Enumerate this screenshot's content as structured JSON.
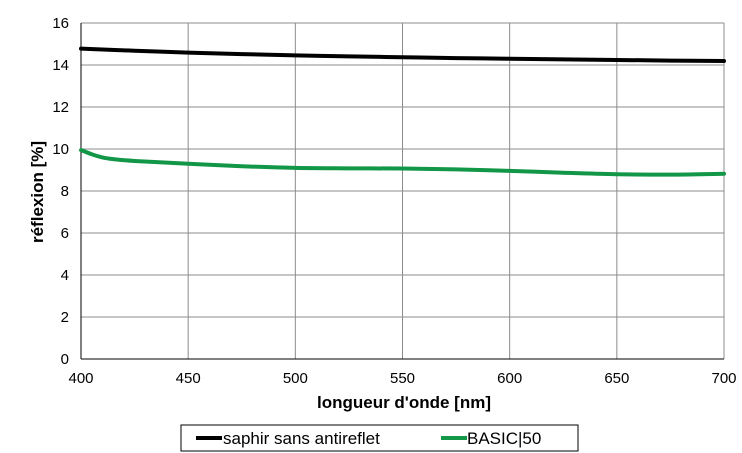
{
  "chart_data": {
    "type": "line",
    "xlabel": "longueur d'onde [nm]",
    "ylabel": "réflexion [%]",
    "xlim": [
      400,
      700
    ],
    "ylim": [
      0,
      16
    ],
    "xticks": [
      400,
      450,
      500,
      550,
      600,
      650,
      700
    ],
    "yticks": [
      0,
      2,
      4,
      6,
      8,
      10,
      12,
      14,
      16
    ],
    "xtick_labels": [
      "400",
      "450",
      "500",
      "550",
      "600",
      "650",
      "700"
    ],
    "ytick_labels": [
      "0",
      "2",
      "4",
      "6",
      "8",
      "10",
      "12",
      "14",
      "16"
    ],
    "grid": true,
    "legend_position": "bottom",
    "series": [
      {
        "name": "saphir sans antireflet",
        "color": "#000000",
        "x": [
          400,
          425,
          450,
          475,
          500,
          525,
          550,
          575,
          600,
          625,
          650,
          675,
          700
        ],
        "values": [
          14.78,
          14.68,
          14.59,
          14.52,
          14.46,
          14.41,
          14.37,
          14.33,
          14.3,
          14.27,
          14.24,
          14.21,
          14.19
        ]
      },
      {
        "name": "BASIC|50",
        "color": "#129647",
        "x": [
          400,
          405,
          410,
          415,
          425,
          450,
          475,
          500,
          525,
          550,
          575,
          600,
          625,
          650,
          675,
          700
        ],
        "values": [
          9.95,
          9.75,
          9.6,
          9.52,
          9.43,
          9.3,
          9.18,
          9.1,
          9.08,
          9.07,
          9.03,
          8.96,
          8.87,
          8.8,
          8.78,
          8.82
        ]
      }
    ]
  }
}
